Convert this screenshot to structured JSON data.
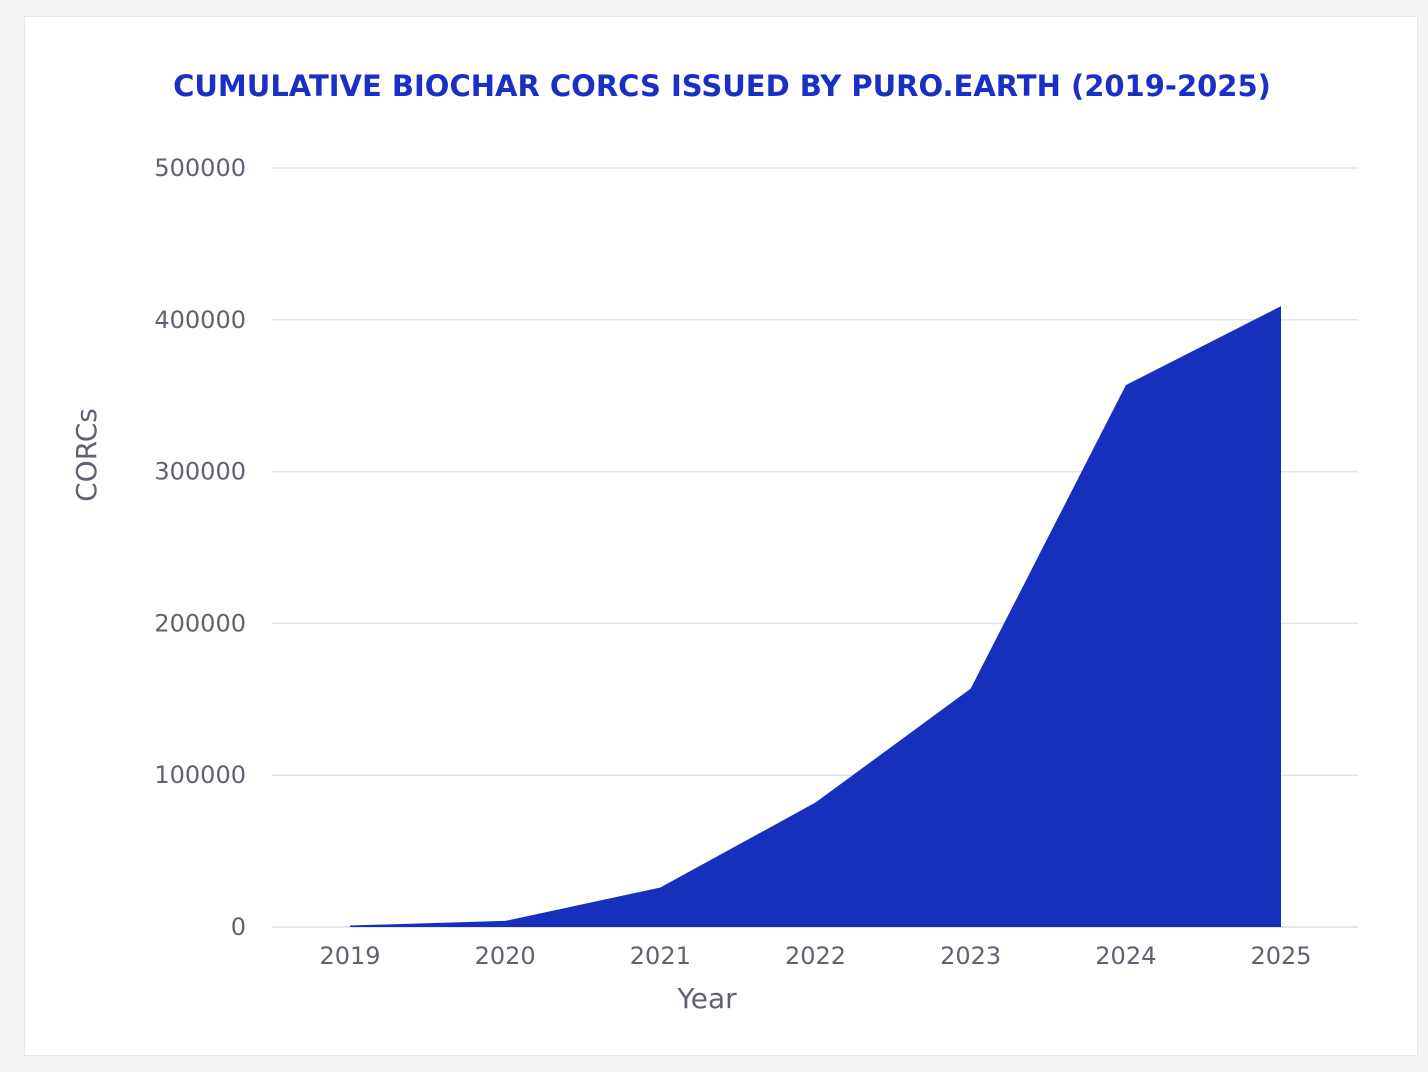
{
  "chart_data": {
    "type": "area",
    "title": "CUMULATIVE BIOCHAR CORCS ISSUED BY PURO.EARTH (2019-2025)",
    "xlabel": "Year",
    "ylabel": "CORCs",
    "x": [
      "2019",
      "2020",
      "2021",
      "2022",
      "2023",
      "2024",
      "2025"
    ],
    "series": [
      {
        "values": [
          1000,
          4000,
          26000,
          82000,
          157000,
          357000,
          409000
        ]
      }
    ],
    "ylim": [
      0,
      500000
    ],
    "yticks": [
      0,
      100000,
      200000,
      300000,
      400000,
      500000
    ],
    "ytick_labels": [
      "0",
      "100000",
      "200000",
      "300000",
      "400000",
      "500000"
    ],
    "grid": true,
    "legend": "none",
    "fill_color": "#172fbd",
    "title_color": "#1a30c4"
  }
}
